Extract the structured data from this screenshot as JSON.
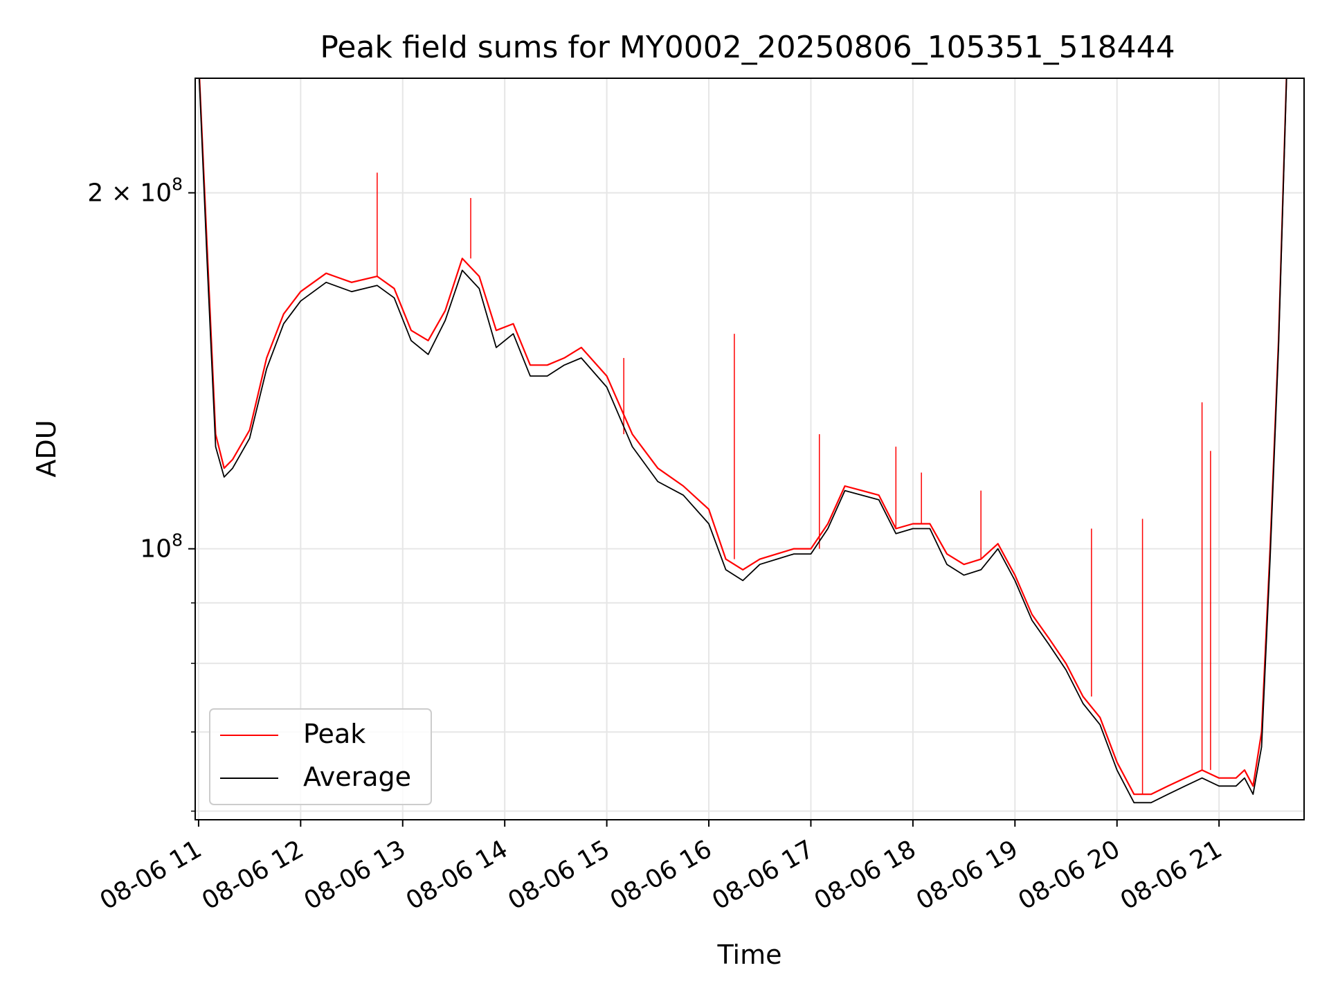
{
  "chart_data": {
    "type": "line",
    "title": "Peak field sums for MY0002_20250806_105351_518444",
    "xlabel": "Time",
    "ylabel": "ADU",
    "yscale": "log",
    "ylim": [
      59000000,
      250000000
    ],
    "xlim": [
      "2025-08-06 10:58",
      "2025-08-06 21:50"
    ],
    "grid": true,
    "legend_position": "lower-left",
    "x_ticks": [
      {
        "t": "2025-08-06 11:00",
        "label": "08-06 11"
      },
      {
        "t": "2025-08-06 12:00",
        "label": "08-06 12"
      },
      {
        "t": "2025-08-06 13:00",
        "label": "08-06 13"
      },
      {
        "t": "2025-08-06 14:00",
        "label": "08-06 14"
      },
      {
        "t": "2025-08-06 15:00",
        "label": "08-06 15"
      },
      {
        "t": "2025-08-06 16:00",
        "label": "08-06 16"
      },
      {
        "t": "2025-08-06 17:00",
        "label": "08-06 17"
      },
      {
        "t": "2025-08-06 18:00",
        "label": "08-06 18"
      },
      {
        "t": "2025-08-06 19:00",
        "label": "08-06 19"
      },
      {
        "t": "2025-08-06 20:00",
        "label": "08-06 20"
      },
      {
        "t": "2025-08-06 21:00",
        "label": "08-06 21"
      }
    ],
    "y_major_ticks": [
      {
        "value": 100000000,
        "base": "10",
        "exp": "8"
      },
      {
        "value": 200000000,
        "base": "2 × 10",
        "exp": "8"
      }
    ],
    "y_minor_ticks": [
      60000000,
      70000000,
      80000000,
      90000000
    ],
    "series": [
      {
        "name": "Peak",
        "color": "#ff0000",
        "x": [
          "2025-08-06 11:00",
          "2025-08-06 11:05",
          "2025-08-06 11:10",
          "2025-08-06 11:15",
          "2025-08-06 11:20",
          "2025-08-06 11:30",
          "2025-08-06 11:40",
          "2025-08-06 11:50",
          "2025-08-06 12:00",
          "2025-08-06 12:15",
          "2025-08-06 12:20",
          "2025-08-06 12:30",
          "2025-08-06 12:45",
          "2025-08-06 12:55",
          "2025-08-06 13:05",
          "2025-08-06 13:15",
          "2025-08-06 13:25",
          "2025-08-06 13:35",
          "2025-08-06 13:45",
          "2025-08-06 13:55",
          "2025-08-06 14:05",
          "2025-08-06 14:15",
          "2025-08-06 14:25",
          "2025-08-06 14:35",
          "2025-08-06 14:45",
          "2025-08-06 15:00",
          "2025-08-06 15:15",
          "2025-08-06 15:30",
          "2025-08-06 15:45",
          "2025-08-06 16:00",
          "2025-08-06 16:10",
          "2025-08-06 16:20",
          "2025-08-06 16:30",
          "2025-08-06 16:40",
          "2025-08-06 16:50",
          "2025-08-06 17:00",
          "2025-08-06 17:10",
          "2025-08-06 17:20",
          "2025-08-06 17:30",
          "2025-08-06 17:40",
          "2025-08-06 17:50",
          "2025-08-06 18:00",
          "2025-08-06 18:10",
          "2025-08-06 18:20",
          "2025-08-06 18:30",
          "2025-08-06 18:40",
          "2025-08-06 18:50",
          "2025-08-06 19:00",
          "2025-08-06 19:10",
          "2025-08-06 19:20",
          "2025-08-06 19:30",
          "2025-08-06 19:40",
          "2025-08-06 19:50",
          "2025-08-06 20:00",
          "2025-08-06 20:10",
          "2025-08-06 20:20",
          "2025-08-06 20:30",
          "2025-08-06 20:40",
          "2025-08-06 20:50",
          "2025-08-06 21:00",
          "2025-08-06 21:10",
          "2025-08-06 21:15",
          "2025-08-06 21:20",
          "2025-08-06 21:25",
          "2025-08-06 21:30",
          "2025-08-06 21:35",
          "2025-08-06 21:40"
        ],
        "values": [
          260000000,
          180000000,
          125000000,
          117000000,
          119000000,
          126000000,
          145000000,
          158000000,
          165000000,
          171000000,
          170000000,
          168000000,
          170000000,
          166000000,
          153000000,
          150000000,
          159000000,
          176000000,
          170000000,
          153000000,
          155000000,
          143000000,
          143000000,
          145000000,
          148000000,
          140000000,
          125000000,
          117000000,
          113000000,
          108000000,
          98000000,
          96000000,
          98000000,
          99000000,
          100000000,
          100000000,
          105000000,
          113000000,
          112000000,
          111000000,
          104000000,
          105000000,
          105000000,
          99000000,
          97000000,
          98000000,
          101000000,
          95000000,
          88000000,
          84000000,
          80000000,
          75000000,
          72000000,
          66000000,
          62000000,
          62000000,
          63000000,
          64000000,
          65000000,
          64000000,
          64000000,
          65000000,
          63000000,
          70000000,
          100000000,
          150000000,
          260000000
        ]
      },
      {
        "name": "Average",
        "color": "#000000",
        "x": [
          "2025-08-06 11:00",
          "2025-08-06 11:05",
          "2025-08-06 11:10",
          "2025-08-06 11:15",
          "2025-08-06 11:20",
          "2025-08-06 11:30",
          "2025-08-06 11:40",
          "2025-08-06 11:50",
          "2025-08-06 12:00",
          "2025-08-06 12:15",
          "2025-08-06 12:20",
          "2025-08-06 12:30",
          "2025-08-06 12:45",
          "2025-08-06 12:55",
          "2025-08-06 13:05",
          "2025-08-06 13:15",
          "2025-08-06 13:25",
          "2025-08-06 13:35",
          "2025-08-06 13:45",
          "2025-08-06 13:55",
          "2025-08-06 14:05",
          "2025-08-06 14:15",
          "2025-08-06 14:25",
          "2025-08-06 14:35",
          "2025-08-06 14:45",
          "2025-08-06 15:00",
          "2025-08-06 15:15",
          "2025-08-06 15:30",
          "2025-08-06 15:45",
          "2025-08-06 16:00",
          "2025-08-06 16:10",
          "2025-08-06 16:20",
          "2025-08-06 16:30",
          "2025-08-06 16:40",
          "2025-08-06 16:50",
          "2025-08-06 17:00",
          "2025-08-06 17:10",
          "2025-08-06 17:20",
          "2025-08-06 17:30",
          "2025-08-06 17:40",
          "2025-08-06 17:50",
          "2025-08-06 18:00",
          "2025-08-06 18:10",
          "2025-08-06 18:20",
          "2025-08-06 18:30",
          "2025-08-06 18:40",
          "2025-08-06 18:50",
          "2025-08-06 19:00",
          "2025-08-06 19:10",
          "2025-08-06 19:20",
          "2025-08-06 19:30",
          "2025-08-06 19:40",
          "2025-08-06 19:50",
          "2025-08-06 20:00",
          "2025-08-06 20:10",
          "2025-08-06 20:20",
          "2025-08-06 20:30",
          "2025-08-06 20:40",
          "2025-08-06 20:50",
          "2025-08-06 21:00",
          "2025-08-06 21:10",
          "2025-08-06 21:15",
          "2025-08-06 21:20",
          "2025-08-06 21:25",
          "2025-08-06 21:30",
          "2025-08-06 21:35",
          "2025-08-06 21:40"
        ],
        "values": [
          258000000,
          175000000,
          122000000,
          115000000,
          117000000,
          124000000,
          142000000,
          155000000,
          162000000,
          168000000,
          167000000,
          165000000,
          167000000,
          163000000,
          150000000,
          146000000,
          156000000,
          172000000,
          166000000,
          148000000,
          152000000,
          140000000,
          140000000,
          143000000,
          145000000,
          137000000,
          122000000,
          114000000,
          111000000,
          105000000,
          96000000,
          94000000,
          97000000,
          98000000,
          99000000,
          99000000,
          104000000,
          112000000,
          111000000,
          110000000,
          103000000,
          104000000,
          104000000,
          97000000,
          95000000,
          96000000,
          100000000,
          94000000,
          87000000,
          83000000,
          79000000,
          74000000,
          71000000,
          65000000,
          61000000,
          61000000,
          62000000,
          63000000,
          64000000,
          63000000,
          63000000,
          64000000,
          62000000,
          68000000,
          98000000,
          148000000,
          258000000
        ]
      }
    ],
    "spikes": [
      {
        "series": "Peak",
        "x": "2025-08-06 12:45",
        "value": 208000000
      },
      {
        "series": "Peak",
        "x": "2025-08-06 13:40",
        "value": 198000000
      },
      {
        "series": "Peak",
        "x": "2025-08-06 15:10",
        "value": 145000000
      },
      {
        "series": "Peak",
        "x": "2025-08-06 16:15",
        "value": 152000000
      },
      {
        "series": "Peak",
        "x": "2025-08-06 17:05",
        "value": 125000000
      },
      {
        "series": "Peak",
        "x": "2025-08-06 17:50",
        "value": 122000000
      },
      {
        "series": "Peak",
        "x": "2025-08-06 18:05",
        "value": 116000000
      },
      {
        "series": "Peak",
        "x": "2025-08-06 18:40",
        "value": 112000000
      },
      {
        "series": "Peak",
        "x": "2025-08-06 19:45",
        "value": 104000000
      },
      {
        "series": "Peak",
        "x": "2025-08-06 20:15",
        "value": 106000000
      },
      {
        "series": "Peak",
        "x": "2025-08-06 20:50",
        "value": 133000000
      },
      {
        "series": "Peak",
        "x": "2025-08-06 20:55",
        "value": 121000000
      }
    ]
  }
}
